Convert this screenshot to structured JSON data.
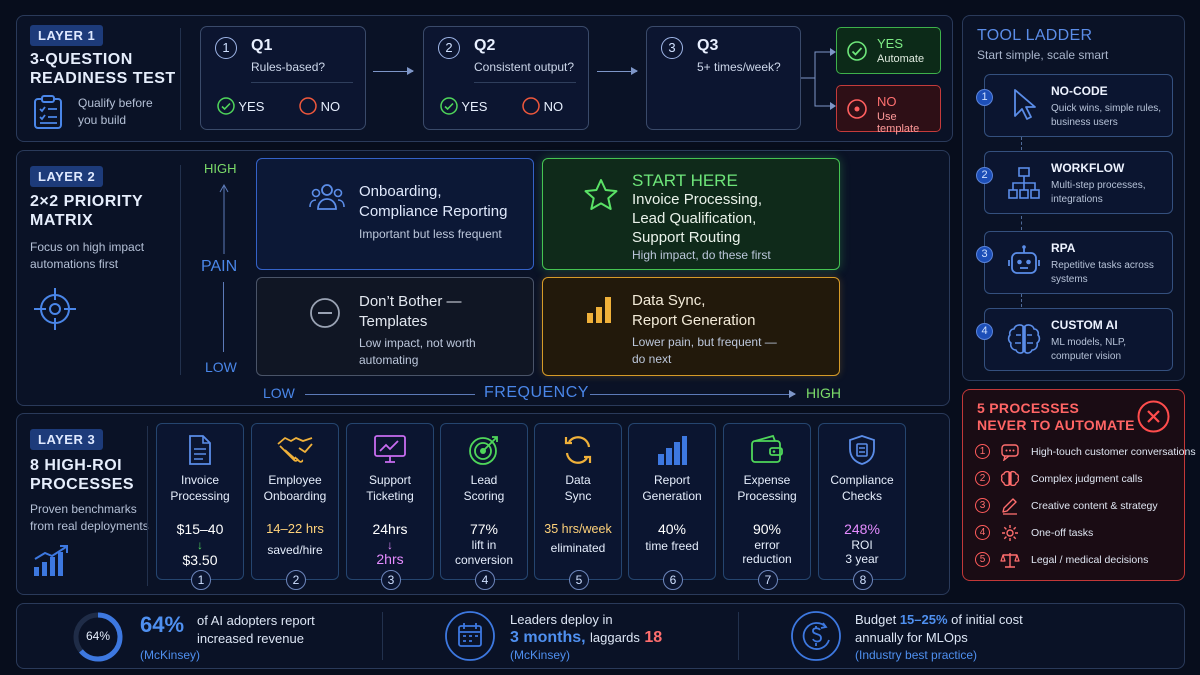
{
  "layer1": {
    "tag": "LAYER 1",
    "title": "3-QUESTION READINESS TEST",
    "title_line1": "3-QUESTION",
    "title_line2": "READINESS TEST",
    "subtitle_line1": "Qualify before",
    "subtitle_line2": "you build",
    "icon": "clipboard-checklist-icon",
    "questions": [
      {
        "num": "1",
        "label": "Q1",
        "text": "Rules-based?",
        "yes": "YES",
        "no": "NO"
      },
      {
        "num": "2",
        "label": "Q2",
        "text": "Consistent output?",
        "yes": "YES",
        "no": "NO"
      },
      {
        "num": "3",
        "label": "Q3",
        "text": "5+ times/week?"
      }
    ],
    "outcome_yes": {
      "label": "YES",
      "sub": "Automate"
    },
    "outcome_no": {
      "label": "NO",
      "sub": "Use template"
    }
  },
  "layer2": {
    "tag": "LAYER 2",
    "title_line1": "2×2 PRIORITY",
    "title_line2": "MATRIX",
    "subtitle_line1": "Focus on high impact",
    "subtitle_line2": "automations first",
    "icon": "target-crosshair-icon",
    "y_axis": {
      "label": "PAIN",
      "high": "HIGH",
      "low": "LOW"
    },
    "x_axis": {
      "label": "FREQUENCY",
      "low": "LOW",
      "high": "HIGH"
    },
    "quadrants": {
      "top_left": {
        "icon": "people-icon",
        "title_line1": "Onboarding,",
        "title_line2": "Compliance Reporting",
        "sub": "Important but less frequent"
      },
      "top_right": {
        "icon": "star-icon",
        "heading": "START HERE",
        "title_line1": "Invoice Processing,",
        "title_line2": "Lead Qualification,",
        "title_line3": "Support Routing",
        "sub": "High impact, do these first"
      },
      "bottom_left": {
        "icon": "minus-circle-icon",
        "title_line1": "Don’t Bother —",
        "title_line2": "Templates",
        "sub_line1": "Low impact, not worth",
        "sub_line2": "automating"
      },
      "bottom_right": {
        "icon": "bar-chart-icon",
        "title_line1": "Data Sync,",
        "title_line2": "Report Generation",
        "sub_line1": "Lower pain, but frequent —",
        "sub_line2": "do next"
      }
    },
    "colors": {
      "top_left": "#3f6fd8",
      "top_right": "#4fd65a",
      "bottom_left": "#5a6478",
      "bottom_right": "#e0a52c"
    }
  },
  "layer3": {
    "tag": "LAYER 3",
    "title_line1": "8 HIGH-ROI",
    "title_line2": "PROCESSES",
    "subtitle_line1": "Proven benchmarks",
    "subtitle_line2": "from real deployments",
    "icon": "growth-chart-icon",
    "processes": [
      {
        "num": "1",
        "icon": "document-icon",
        "name_line1": "Invoice",
        "name_line2": "Processing",
        "v1": "$15–40",
        "arrow": "↓",
        "v2": "$3.50",
        "color": "#ffffff"
      },
      {
        "num": "2",
        "icon": "handshake-icon",
        "name_line1": "Employee",
        "name_line2": "Onboarding",
        "v1": "14–22 hrs",
        "v2": "saved/hire",
        "color": "#ffd27a"
      },
      {
        "num": "3",
        "icon": "monitor-chart-icon",
        "name_line1": "Support",
        "name_line2": "Ticketing",
        "v1": "24hrs",
        "arrow": "↓",
        "v2": "2hrs",
        "color": "#e58cff"
      },
      {
        "num": "4",
        "icon": "target-icon",
        "name_line1": "Lead",
        "name_line2": "Scoring",
        "v1": "77%",
        "v2": "lift in",
        "v3": "conversion",
        "color": "#ffffff"
      },
      {
        "num": "5",
        "icon": "sync-arrows-icon",
        "name_line1": "Data",
        "name_line2": "Sync",
        "v1": "35 hrs/week",
        "v2": "eliminated",
        "color": "#ffd27a"
      },
      {
        "num": "6",
        "icon": "bar-chart-icon",
        "name_line1": "Report",
        "name_line2": "Generation",
        "v1": "40%",
        "v2": "time freed",
        "color": "#ffffff"
      },
      {
        "num": "7",
        "icon": "wallet-icon",
        "name_line1": "Expense",
        "name_line2": "Processing",
        "v1": "90%",
        "v2": "error",
        "v3": "reduction",
        "color": "#ffffff"
      },
      {
        "num": "8",
        "icon": "shield-icon",
        "name_line1": "Compliance",
        "name_line2": "Checks",
        "v1": "248%",
        "v2": "ROI",
        "v3": "3 year",
        "color": "#e58cff"
      }
    ]
  },
  "tool_ladder": {
    "title": "TOOL LADDER",
    "subtitle": "Start simple, scale smart",
    "items": [
      {
        "num": "1",
        "icon": "cursor-icon",
        "title": "NO-CODE",
        "desc_line1": "Quick wins, simple rules,",
        "desc_line2": "business users"
      },
      {
        "num": "2",
        "icon": "workflow-icon",
        "title": "WORKFLOW",
        "desc_line1": "Multi-step processes,",
        "desc_line2": "integrations"
      },
      {
        "num": "3",
        "icon": "robot-icon",
        "title": "RPA",
        "desc_line1": "Repetitive tasks across",
        "desc_line2": "systems"
      },
      {
        "num": "4",
        "icon": "brain-icon",
        "title": "CUSTOM AI",
        "desc_line1": "ML models, NLP,",
        "desc_line2": "computer vision"
      }
    ]
  },
  "never_automate": {
    "title_line1": "5 PROCESSES",
    "title_line2": "NEVER TO AUTOMATE",
    "icon": "x-circle-icon",
    "items": [
      {
        "num": "1",
        "icon": "chat-icon",
        "text": "High-touch customer conversations"
      },
      {
        "num": "2",
        "icon": "brain-icon",
        "text": "Complex judgment calls"
      },
      {
        "num": "3",
        "icon": "pen-icon",
        "text": "Creative content & strategy"
      },
      {
        "num": "4",
        "icon": "gear-icon",
        "text": "One-off tasks"
      },
      {
        "num": "5",
        "icon": "scales-icon",
        "text": "Legal / medical decisions"
      }
    ]
  },
  "footer": {
    "stat1": {
      "ring_label": "64%",
      "ring_fraction": 0.64,
      "value": "64%",
      "text_line1": "of AI adopters report",
      "text_line2": "increased revenue",
      "source": "(McKinsey)"
    },
    "stat2": {
      "icon": "calendar-icon",
      "line1": "Leaders deploy in",
      "value": "3 months,",
      "mid": "laggards",
      "value2": "18",
      "source": "(McKinsey)"
    },
    "stat3": {
      "icon": "dollar-cycle-icon",
      "pre": "Budget",
      "value": "15–25%",
      "post": "of initial cost",
      "line2": "annually for MLOps",
      "source": "(Industry best practice)"
    }
  }
}
